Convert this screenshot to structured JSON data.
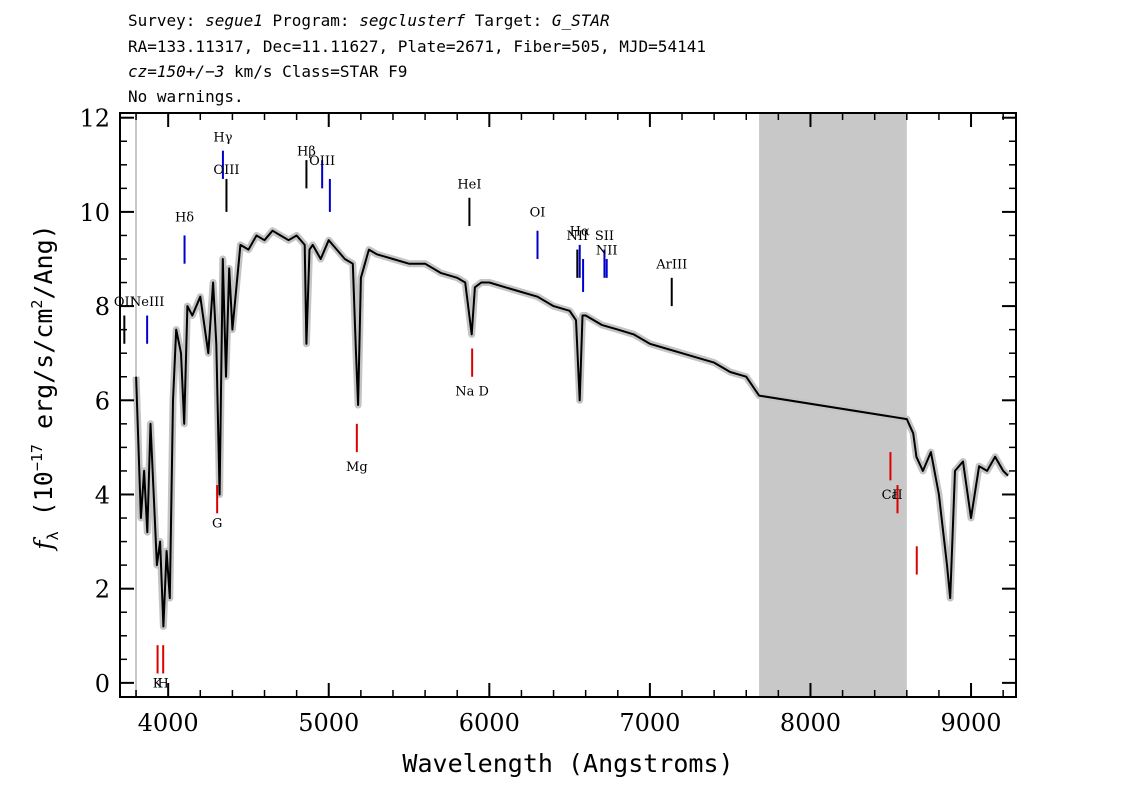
{
  "header": {
    "line1": {
      "survey_label": "Survey: ",
      "survey": "segue1",
      "program_label": " Program: ",
      "program": "segclusterf",
      "target_label": " Target: ",
      "target": "G_STAR"
    },
    "line2": "RA=133.11317, Dec=11.11627, Plate=2671, Fiber=505, MJD=54141",
    "line3": {
      "cz": "cz=150+/−3",
      "rest": " km/s Class=STAR F9"
    },
    "line4": "No warnings."
  },
  "chart_data": {
    "type": "line",
    "xlabel": "Wavelength (Angstroms)",
    "ylabel_parts": {
      "f": "f",
      "lambda": "λ",
      "mid": " (10",
      "exp": "−17",
      "unit1": " erg/s/cm",
      "exp2": "2",
      "unit2": "/Ang)"
    },
    "xlim": [
      3700,
      9280
    ],
    "ylim": [
      -0.3,
      12.1
    ],
    "xticks": [
      4000,
      5000,
      6000,
      7000,
      8000,
      9000
    ],
    "yticks": [
      0,
      2,
      4,
      6,
      8,
      10,
      12
    ],
    "masked_region": [
      7680,
      8600
    ],
    "series": [
      {
        "color": "#000000",
        "x": [
          3800,
          3830,
          3850,
          3870,
          3890,
          3910,
          3930,
          3950,
          3970,
          3990,
          4010,
          4030,
          4050,
          4080,
          4100,
          4120,
          4150,
          4200,
          4250,
          4280,
          4300,
          4320,
          4340,
          4360,
          4380,
          4400,
          4450,
          4500,
          4550,
          4600,
          4650,
          4700,
          4750,
          4800,
          4850,
          4861,
          4880,
          4900,
          4950,
          5000,
          5050,
          5100,
          5150,
          5170,
          5183,
          5200,
          5250,
          5300,
          5400,
          5500,
          5600,
          5700,
          5800,
          5850,
          5890,
          5910,
          5950,
          6000,
          6100,
          6200,
          6300,
          6400,
          6500,
          6540,
          6563,
          6580,
          6600,
          6700,
          6800,
          6900,
          7000,
          7100,
          7200,
          7300,
          7400,
          7500,
          7600,
          7680,
          8600,
          8640,
          8660,
          8700,
          8750,
          8800,
          8850,
          8870,
          8900,
          8950,
          9000,
          9050,
          9100,
          9150,
          9200,
          9230
        ],
        "y": [
          6.5,
          3.5,
          4.5,
          3.2,
          5.5,
          4.0,
          2.5,
          3.0,
          1.2,
          2.8,
          1.8,
          6.0,
          7.5,
          7.0,
          5.5,
          8.0,
          7.8,
          8.2,
          7.0,
          8.5,
          7.2,
          4.0,
          9.0,
          6.5,
          8.8,
          7.5,
          9.3,
          9.2,
          9.5,
          9.4,
          9.6,
          9.5,
          9.4,
          9.5,
          9.3,
          7.2,
          9.2,
          9.3,
          9.0,
          9.4,
          9.2,
          9.0,
          8.9,
          7.0,
          5.9,
          8.6,
          9.2,
          9.1,
          9.0,
          8.9,
          8.9,
          8.7,
          8.6,
          8.5,
          7.4,
          8.4,
          8.5,
          8.5,
          8.4,
          8.3,
          8.2,
          8.0,
          7.9,
          7.7,
          6.0,
          7.8,
          7.8,
          7.6,
          7.5,
          7.4,
          7.2,
          7.1,
          7.0,
          6.9,
          6.8,
          6.6,
          6.5,
          6.1,
          5.6,
          5.3,
          4.8,
          4.5,
          4.9,
          4.0,
          2.5,
          1.8,
          4.5,
          4.7,
          3.5,
          4.6,
          4.5,
          4.8,
          4.5,
          4.4
        ]
      }
    ],
    "lines": [
      {
        "name": "OII",
        "x": 3727,
        "color": "#000000",
        "y1": 7.2,
        "y2": 7.8,
        "label_y": 8.0
      },
      {
        "name": "NeIII",
        "x": 3869,
        "color": "#0000cc",
        "y1": 7.2,
        "y2": 7.8,
        "label_y": 8.0
      },
      {
        "name": "K",
        "x": 3934,
        "color": "#dd0000",
        "y1": 0.2,
        "y2": 0.8,
        "label_y": -0.1,
        "label_text": "K"
      },
      {
        "name": "H",
        "x": 3969,
        "color": "#dd0000",
        "y1": 0.2,
        "y2": 0.8,
        "label_y": -0.1,
        "label_text": "H"
      },
      {
        "name": "Hδ",
        "x": 4102,
        "color": "#0000cc",
        "y1": 8.9,
        "y2": 9.5,
        "label_y": 9.8
      },
      {
        "name": "G",
        "x": 4305,
        "color": "#dd0000",
        "y1": 3.6,
        "y2": 4.2,
        "label_y": 3.3
      },
      {
        "name": "Hγ",
        "x": 4341,
        "color": "#0000cc",
        "y1": 10.7,
        "y2": 11.3,
        "label_y": 11.5
      },
      {
        "name": "OIII",
        "x": 4363,
        "color": "#000000",
        "y1": 10.0,
        "y2": 10.7,
        "label_y": 10.8
      },
      {
        "name": "Hβ",
        "x": 4861,
        "color": "#000000",
        "y1": 10.5,
        "y2": 11.1,
        "label_y": 11.2
      },
      {
        "name": "OIII",
        "x": 4959,
        "color": "#0000cc",
        "y1": 10.5,
        "y2": 11.1,
        "label_y": 11.0
      },
      {
        "name": "OIII2",
        "x": 5007,
        "color": "#0000cc",
        "y1": 10.0,
        "y2": 10.7,
        "label_y": 0,
        "label_text": ""
      },
      {
        "name": "Mg",
        "x": 5175,
        "color": "#dd0000",
        "y1": 4.9,
        "y2": 5.5,
        "label_y": 4.5
      },
      {
        "name": "HeI",
        "x": 5876,
        "color": "#000000",
        "y1": 9.7,
        "y2": 10.3,
        "label_y": 10.5
      },
      {
        "name": "Na D",
        "x": 5893,
        "color": "#dd0000",
        "y1": 6.5,
        "y2": 7.1,
        "label_y": 6.1
      },
      {
        "name": "OI",
        "x": 6300,
        "color": "#0000cc",
        "y1": 9.0,
        "y2": 9.6,
        "label_y": 9.9
      },
      {
        "name": "NII",
        "x": 6548,
        "color": "#000000",
        "y1": 8.6,
        "y2": 9.2,
        "label_y": 9.4
      },
      {
        "name": "Hα",
        "x": 6563,
        "color": "#0000cc",
        "y1": 8.6,
        "y2": 9.3,
        "label_y": 9.5
      },
      {
        "name": "NII2",
        "x": 6584,
        "color": "#0000cc",
        "y1": 8.3,
        "y2": 9.0,
        "label_y": 0,
        "label_text": ""
      },
      {
        "name": "SII",
        "x": 6717,
        "color": "#0000cc",
        "y1": 8.6,
        "y2": 9.2,
        "label_y": 9.4
      },
      {
        "name": "NII",
        "x": 6731,
        "color": "#0000cc",
        "y1": 8.6,
        "y2": 9.0,
        "label_y": 9.1,
        "label_text": "NII"
      },
      {
        "name": "ArIII",
        "x": 7136,
        "color": "#000000",
        "y1": 8.0,
        "y2": 8.6,
        "label_y": 8.8
      },
      {
        "name": "CaII",
        "x": 8498,
        "color": "#dd0000",
        "y1": 4.3,
        "y2": 4.9,
        "label_y": 3.9,
        "label_text": "Ca"
      },
      {
        "name": "CaII-2",
        "x": 8542,
        "color": "#dd0000",
        "y1": 3.6,
        "y2": 4.2,
        "label_y": 3.9,
        "label_text": "II"
      },
      {
        "name": "CaII-3",
        "x": 8662,
        "color": "#dd0000",
        "y1": 2.3,
        "y2": 2.9,
        "label_y": 0,
        "label_text": ""
      }
    ]
  }
}
